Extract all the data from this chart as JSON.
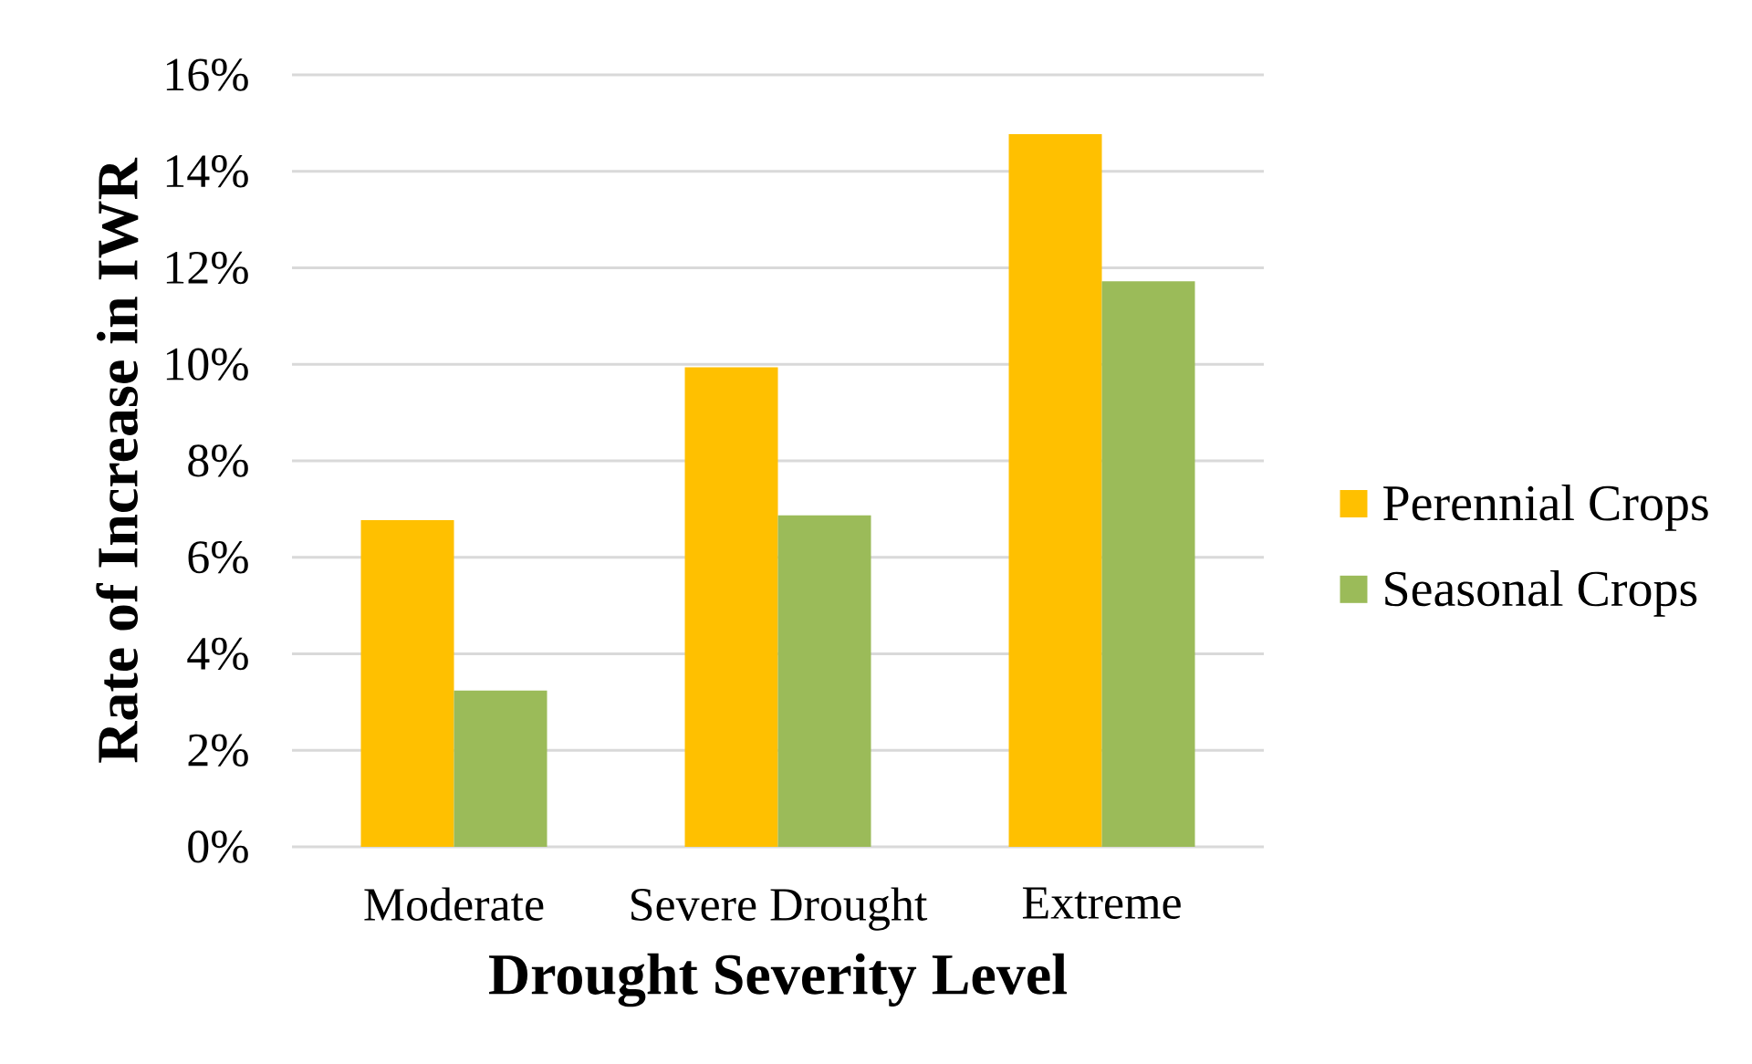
{
  "chart_data": {
    "type": "bar",
    "xlabel": "Drought Severity Level",
    "ylabel": "Rate of Increase in IWR",
    "categories": [
      "Moderate",
      "Severe Drought",
      "Extreme"
    ],
    "series": [
      {
        "name": "Perennial Crops",
        "color": "#ffc000",
        "values": [
          6.77,
          9.94,
          14.77
        ]
      },
      {
        "name": "Seasonal Crops",
        "color": "#9bbb59",
        "values": [
          3.24,
          6.87,
          11.72
        ]
      }
    ],
    "ylim": [
      0,
      16
    ],
    "yticks": [
      {
        "value": 0,
        "label": "0%"
      },
      {
        "value": 2,
        "label": "2%"
      },
      {
        "value": 4,
        "label": "4%"
      },
      {
        "value": 6,
        "label": "6%"
      },
      {
        "value": 8,
        "label": "8%"
      },
      {
        "value": 10,
        "label": "10%"
      },
      {
        "value": 12,
        "label": "12%"
      },
      {
        "value": 14,
        "label": "14%"
      },
      {
        "value": 16,
        "label": "16%"
      }
    ],
    "grid": "y",
    "legend": "right"
  }
}
